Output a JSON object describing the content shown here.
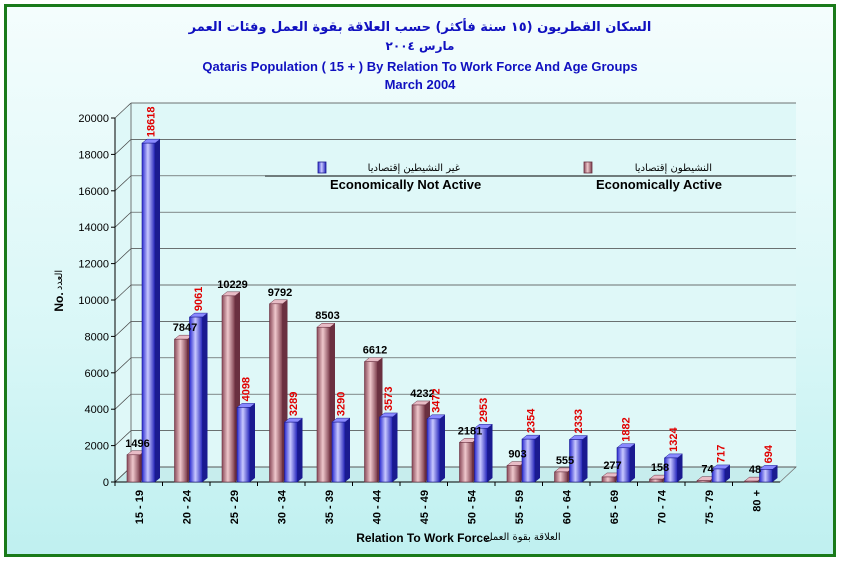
{
  "header": {
    "title_ar": "السكان القطريون (١٥ سنة فأكثر) حسب العلاقة بقوة العمل وفئات العمر",
    "subtitle_ar": "مارس ٢٠٠٤",
    "title_en": "Qataris Population ( 15 + ) By Relation To Work Force And Age Groups",
    "subtitle_en": "March 2004"
  },
  "colors": {
    "frame_border": "#1a7a1a",
    "active_series": "#c08080",
    "not_active_series": "#4a4ae8",
    "title_ar": "#1010c0",
    "title_en": "#1010c0",
    "not_active_label": "#e00000"
  },
  "chart_data": {
    "type": "bar",
    "title": "Qataris Population ( 15 + ) By Relation To Work Force And Age Groups",
    "subtitle": "March 2004",
    "xlabel": "Relation To Work Force",
    "xlabel_ar": "العلاقة بقوة العمل",
    "ylabel": "No.",
    "ylabel_ar": "العدد",
    "ylim": [
      0,
      20000
    ],
    "yticks": [
      0,
      2000,
      4000,
      6000,
      8000,
      10000,
      12000,
      14000,
      16000,
      18000,
      20000
    ],
    "grid": true,
    "three_d": true,
    "legend_position": "inside-top",
    "categories": [
      "15 - 19",
      "20 - 24",
      "25 - 29",
      "30 - 34",
      "35 - 39",
      "40 - 44",
      "45 - 49",
      "50 - 54",
      "55 - 59",
      "60 - 64",
      "65 - 69",
      "70 - 74",
      "75 - 79",
      "80 +"
    ],
    "series": [
      {
        "name": "Economically Active",
        "name_ar": "النشيطون إقتصاديا",
        "values": [
          1496,
          7847,
          10229,
          9792,
          8503,
          6612,
          4232,
          2181,
          903,
          555,
          277,
          158,
          74,
          48
        ],
        "labels": [
          "1496",
          "7847",
          "10229",
          "9792",
          "8503",
          "6612",
          "4232",
          "2181",
          "903",
          "555",
          "277",
          "158",
          "74",
          "48"
        ]
      },
      {
        "name": "Economically Not Active",
        "name_ar": "غير النشيطين إقتصاديا",
        "values": [
          18618,
          9061,
          4098,
          3289,
          3290,
          3573,
          3472,
          2953,
          2354,
          2333,
          1882,
          1324,
          717,
          694
        ],
        "labels": [
          "18618",
          "9061",
          "4098",
          "3289",
          "3290",
          "3573",
          "3472",
          "2953",
          "2354",
          "2333",
          "1882",
          "1324",
          "717",
          "694"
        ]
      }
    ]
  }
}
